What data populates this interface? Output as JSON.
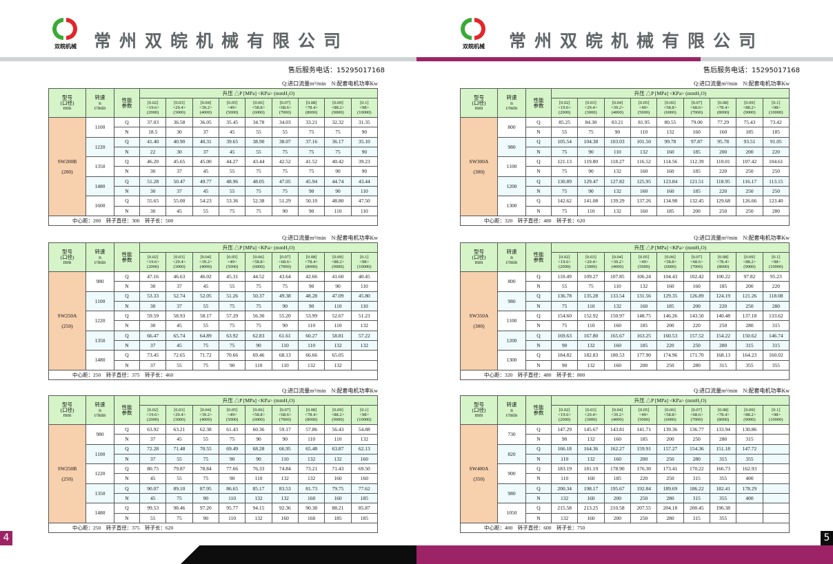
{
  "company": {
    "name": "常州双皖机械有限公司",
    "logo_text": "双皖机械",
    "phone": "售后服务电话：15295017168"
  },
  "colors": {
    "accent": "#9c2366",
    "model_bg": "#f7d0ae",
    "header_bg": "#d5f5c8",
    "alt_row": "#eefafc",
    "dark": "#0d0d0d"
  },
  "legend": "Q:进口流量m³/min　N:配套电机功率Kw",
  "table_header": {
    "model": [
      "型号",
      "(口径)",
      "mm"
    ],
    "speed": [
      "转速",
      "n",
      "r/min"
    ],
    "param": [
      "性能",
      "参数"
    ],
    "pressure": "升压 △P [MPa] <KPa> (mmH₂O)",
    "columns": [
      [
        "[0.02]",
        "<19.6>",
        "(2000)"
      ],
      [
        "[0.03]",
        "<29.4>",
        "(3000)"
      ],
      [
        "[0.04]",
        "<39.2>",
        "(4000)"
      ],
      [
        "[0.05]",
        "<49>",
        "(5000)"
      ],
      [
        "[0.06]",
        "<58.8>",
        "(6000)"
      ],
      [
        "[0.07]",
        "<68.6>",
        "(7000)"
      ],
      [
        "[0.08]",
        "<78.4>",
        "(8000)"
      ],
      [
        "[0.09]",
        "<88.2>",
        "(9000)"
      ],
      [
        "[0.1]",
        "<98>",
        "(10000)"
      ]
    ]
  },
  "tables": [
    {
      "model": "SW200B",
      "bore": "(200)",
      "footer": "中心距：200　转子直径：300　转子长：500",
      "rows": [
        {
          "speed": "1100",
          "Q": [
            "37.03",
            "36.58",
            "36.05",
            "35.45",
            "34.78",
            "34.03",
            "33.21",
            "32.32",
            "31.35"
          ],
          "N": [
            "18.5",
            "30",
            "37",
            "45",
            "55",
            "55",
            "75",
            "75",
            "90"
          ]
        },
        {
          "speed": "1220",
          "Q": [
            "41.40",
            "40.90",
            "40.31",
            "39.65",
            "38.90",
            "38.07",
            "37.16",
            "36.17",
            "35.10"
          ],
          "N": [
            "22",
            "30",
            "37",
            "45",
            "55",
            "75",
            "75",
            "75",
            "90"
          ]
        },
        {
          "speed": "1350",
          "Q": [
            "46.20",
            "45.65",
            "45.00",
            "44.27",
            "43.44",
            "42.52",
            "41.52",
            "40.42",
            "39.23"
          ],
          "N": [
            "30",
            "37",
            "45",
            "55",
            "75",
            "75",
            "75",
            "90",
            "90"
          ]
        },
        {
          "speed": "1480",
          "Q": [
            "51.28",
            "50.47",
            "49.77",
            "48.96",
            "48.05",
            "47.05",
            "45.94",
            "44.74",
            "43.44"
          ],
          "N": [
            "30",
            "37",
            "45",
            "55",
            "75",
            "75",
            "90",
            "90",
            "110"
          ]
        },
        {
          "speed": "1600",
          "Q": [
            "55.65",
            "55.00",
            "54.23",
            "53.36",
            "52.38",
            "51.29",
            "50.10",
            "48.80",
            "47.50"
          ],
          "N": [
            "30",
            "45",
            "55",
            "75",
            "75",
            "90",
            "90",
            "110",
            "110"
          ]
        }
      ]
    },
    {
      "model": "SW300A",
      "bore": "(300)",
      "footer": "中心距：320　转子直径：480　转子长：620",
      "rows": [
        {
          "speed": "800",
          "Q": [
            "85.25",
            "84.30",
            "83.21",
            "81.95",
            "80.55",
            "79.00",
            "77.29",
            "75.43",
            "73.42"
          ],
          "N": [
            "55",
            "75",
            "90",
            "110",
            "132",
            "160",
            "160",
            "185",
            "185"
          ]
        },
        {
          "speed": "980",
          "Q": [
            "105.54",
            "104.38",
            "103.03",
            "101.50",
            "99.78",
            "97.87",
            "95.78",
            "93.51",
            "91.05"
          ],
          "N": [
            "75",
            "90",
            "110",
            "132",
            "160",
            "185",
            "200",
            "200",
            "220"
          ]
        },
        {
          "speed": "1100",
          "Q": [
            "121.13",
            "119.80",
            "118.27",
            "116.52",
            "114.56",
            "112.39",
            "110.01",
            "107.42",
            "104.61"
          ],
          "N": [
            "75",
            "90",
            "132",
            "160",
            "160",
            "185",
            "220",
            "250",
            "250"
          ]
        },
        {
          "speed": "1200",
          "Q": [
            "130.89",
            "129.47",
            "127.82",
            "125.95",
            "123.84",
            "121.51",
            "118.95",
            "116.17",
            "113.15"
          ],
          "N": [
            "75",
            "90",
            "132",
            "160",
            "160",
            "185",
            "220",
            "250",
            "250"
          ]
        },
        {
          "speed": "1300",
          "Q": [
            "142.62",
            "141.08",
            "139.29",
            "137.26",
            "134.98",
            "132.45",
            "129.68",
            "126.66",
            "123.40"
          ],
          "N": [
            "75",
            "110",
            "132",
            "160",
            "185",
            "200",
            "250",
            "250",
            "280"
          ]
        }
      ]
    },
    {
      "model": "SW250A",
      "bore": "(250)",
      "footer": "中心距：250　转子直径：375　转子长：460",
      "rows": [
        {
          "speed": "980",
          "Q": [
            "47.16",
            "46.63",
            "46.02",
            "45.31",
            "44.52",
            "43.64",
            "42.66",
            "41.60",
            "40.45"
          ],
          "N": [
            "30",
            "37",
            "45",
            "55",
            "75",
            "75",
            "90",
            "90",
            "110"
          ]
        },
        {
          "speed": "1100",
          "Q": [
            "53.33",
            "52.74",
            "52.05",
            "51.26",
            "50.37",
            "49.38",
            "48.28",
            "47.09",
            "45.80"
          ],
          "N": [
            "30",
            "37",
            "55",
            "75",
            "75",
            "90",
            "90",
            "110",
            "110"
          ]
        },
        {
          "speed": "1220",
          "Q": [
            "59.59",
            "58.93",
            "58.17",
            "57.29",
            "56.30",
            "55.20",
            "53.99",
            "52.67",
            "51.23"
          ],
          "N": [
            "30",
            "45",
            "55",
            "75",
            "75",
            "90",
            "110",
            "110",
            "132"
          ]
        },
        {
          "speed": "1350",
          "Q": [
            "66.47",
            "65.74",
            "64.89",
            "63.92",
            "62.83",
            "61.61",
            "60.27",
            "58.81",
            "57.22"
          ],
          "N": [
            "37",
            "45",
            "75",
            "75",
            "90",
            "110",
            "110",
            "132",
            "132"
          ]
        },
        {
          "speed": "1480",
          "Q": [
            "73.45",
            "72.65",
            "71.72",
            "70.66",
            "69.46",
            "68.13",
            "66.66",
            "65.05",
            ""
          ],
          "N": [
            "37",
            "55",
            "75",
            "90",
            "110",
            "110",
            "132",
            "132",
            ""
          ]
        }
      ]
    },
    {
      "model": "SW350A",
      "bore": "(300)",
      "footer": "中心距：320　转子直径：480　转子长：800",
      "rows": [
        {
          "speed": "800",
          "Q": [
            "110.49",
            "109.27",
            "107.85",
            "106.24",
            "104.43",
            "102.42",
            "100.22",
            "97.82",
            "95.23"
          ],
          "N": [
            "55",
            "75",
            "110",
            "132",
            "160",
            "160",
            "185",
            "200",
            "220"
          ]
        },
        {
          "speed": "980",
          "Q": [
            "136.78",
            "135.28",
            "133.54",
            "131.56",
            "129.35",
            "126.89",
            "124.19",
            "121.26",
            "118.08"
          ],
          "N": [
            "75",
            "110",
            "132",
            "160",
            "185",
            "200",
            "220",
            "250",
            "280"
          ]
        },
        {
          "speed": "1100",
          "Q": [
            "154.60",
            "152.92",
            "150.97",
            "148.75",
            "146.26",
            "143.50",
            "140.48",
            "137.18",
            "133.62"
          ],
          "N": [
            "75",
            "110",
            "160",
            "185",
            "200",
            "220",
            "250",
            "280",
            "315"
          ]
        },
        {
          "speed": "1200",
          "Q": [
            "169.63",
            "167.80",
            "165.67",
            "163.25",
            "160.53",
            "157.52",
            "154.22",
            "150.62",
            "146.74"
          ],
          "N": [
            "90",
            "132",
            "160",
            "185",
            "220",
            "250",
            "280",
            "315",
            "315"
          ]
        },
        {
          "speed": "1300",
          "Q": [
            "184.82",
            "182.83",
            "180.53",
            "177.90",
            "174.96",
            "171.70",
            "168.13",
            "164.23",
            "160.02"
          ],
          "N": [
            "90",
            "132",
            "160",
            "200",
            "250",
            "280",
            "315",
            "355",
            "355"
          ]
        }
      ]
    },
    {
      "model": "SW250B",
      "bore": "(250)",
      "footer": "中心距：250　转子直径：375　转子长：620",
      "rows": [
        {
          "speed": "980",
          "Q": [
            "63.92",
            "63.21",
            "62.38",
            "61.43",
            "60.36",
            "59.17",
            "57.86",
            "56.43",
            "54.88"
          ],
          "N": [
            "37",
            "45",
            "55",
            "75",
            "90",
            "90",
            "110",
            "110",
            "132"
          ]
        },
        {
          "speed": "1100",
          "Q": [
            "72.28",
            "71.48",
            "70.55",
            "69.49",
            "68.28",
            "66.95",
            "65.48",
            "63.87",
            "62.13"
          ],
          "N": [
            "37",
            "55",
            "75",
            "90",
            "90",
            "110",
            "132",
            "132",
            "160"
          ]
        },
        {
          "speed": "1220",
          "Q": [
            "80.75",
            "79.87",
            "78.84",
            "77.66",
            "76.33",
            "74.84",
            "73.21",
            "71.43",
            "69.50"
          ],
          "N": [
            "45",
            "55",
            "75",
            "90",
            "110",
            "132",
            "132",
            "160",
            "160"
          ]
        },
        {
          "speed": "1350",
          "Q": [
            "90.07",
            "89.10",
            "87.95",
            "86.65",
            "85.17",
            "83.53",
            "81.73",
            "79.75",
            "77.62"
          ],
          "N": [
            "45",
            "75",
            "90",
            "110",
            "132",
            "132",
            "160",
            "160",
            "185"
          ]
        },
        {
          "speed": "1480",
          "Q": [
            "99.53",
            "98.46",
            "97.20",
            "95.77",
            "94.15",
            "92.36",
            "90.38",
            "88.21",
            "85.87"
          ],
          "N": [
            "55",
            "75",
            "90",
            "110",
            "132",
            "160",
            "160",
            "185",
            "185"
          ]
        }
      ]
    },
    {
      "model": "SW400A",
      "bore": "(350)",
      "footer": "中心距：400　转子直径：600　转子长：750",
      "rows": [
        {
          "speed": "730",
          "Q": [
            "147.29",
            "145.67",
            "143.81",
            "141.71",
            "139.36",
            "136.77",
            "133.94",
            "130.86",
            ""
          ],
          "N": [
            "90",
            "132",
            "160",
            "185",
            "200",
            "250",
            "280",
            "315",
            ""
          ]
        },
        {
          "speed": "820",
          "Q": [
            "166.18",
            "164.36",
            "162.27",
            "159.91",
            "157.27",
            "154.36",
            "151.18",
            "147.72",
            ""
          ],
          "N": [
            "110",
            "132",
            "160",
            "200",
            "250",
            "280",
            "315",
            "355",
            ""
          ]
        },
        {
          "speed": "900",
          "Q": [
            "183.19",
            "181.19",
            "178.90",
            "176.30",
            "173.41",
            "170.22",
            "166.73",
            "162.93",
            ""
          ],
          "N": [
            "110",
            "160",
            "185",
            "220",
            "250",
            "315",
            "355",
            "400",
            ""
          ]
        },
        {
          "speed": "980",
          "Q": [
            "200.34",
            "198.17",
            "195.67",
            "192.84",
            "189.69",
            "186.22",
            "182.41",
            "178.29",
            ""
          ],
          "N": [
            "132",
            "160",
            "200",
            "250",
            "280",
            "315",
            "355",
            "400",
            ""
          ]
        },
        {
          "speed": "1050",
          "Q": [
            "215.58",
            "213.25",
            "210.58",
            "207.55",
            "204.18",
            "200.45",
            "196.38",
            "",
            ""
          ],
          "N": [
            "132",
            "160",
            "200",
            "250",
            "280",
            "315",
            "355",
            "",
            ""
          ]
        }
      ]
    }
  ],
  "pages": {
    "left": "4",
    "right": "5"
  }
}
